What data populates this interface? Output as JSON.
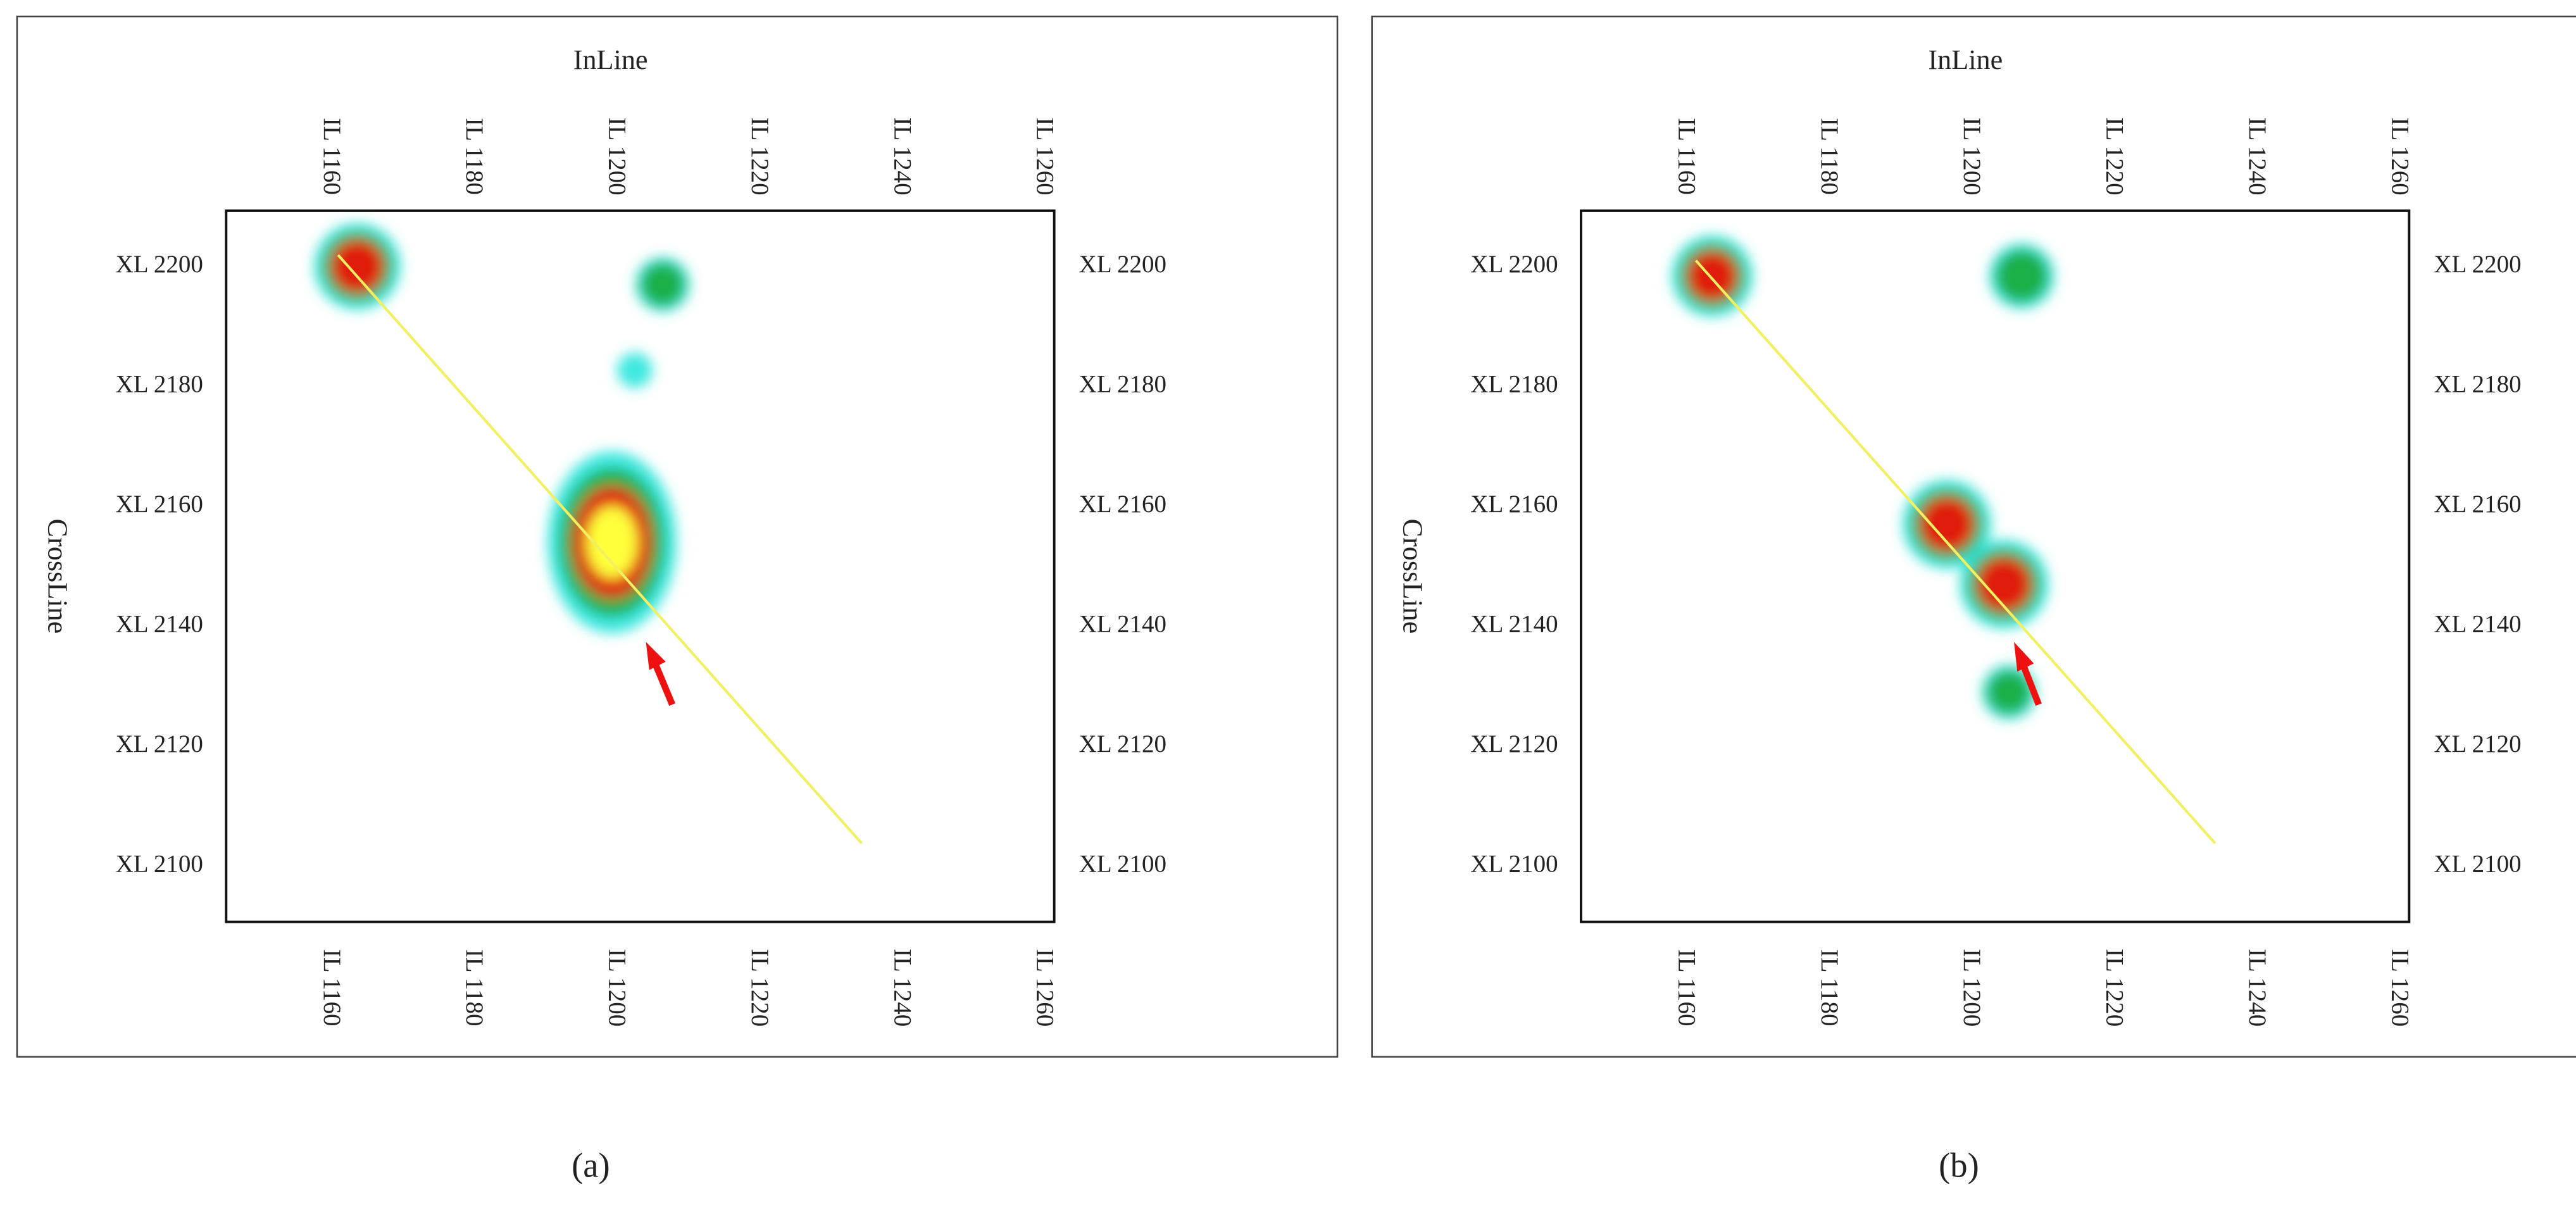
{
  "chart_data": [
    {
      "type": "heatmap",
      "xlabel": "InLine",
      "ylabel": "CrossLine",
      "caption": "(a)",
      "xlim": [
        1145.5,
        1261.6
      ],
      "ylim": [
        2090.7,
        2209.3
      ],
      "xticks": [
        {
          "value": 1160,
          "label": "IL 1160"
        },
        {
          "value": 1180,
          "label": "IL 1180"
        },
        {
          "value": 1200,
          "label": "IL 1200"
        },
        {
          "value": 1220,
          "label": "IL 1220"
        },
        {
          "value": 1240,
          "label": "IL 1240"
        },
        {
          "value": 1260,
          "label": "IL 1260"
        }
      ],
      "yticks": [
        {
          "value": 2100,
          "label": "XL 2100"
        },
        {
          "value": 2120,
          "label": "XL 2120"
        },
        {
          "value": 2140,
          "label": "XL 2140"
        },
        {
          "value": 2160,
          "label": "XL 2160"
        },
        {
          "value": 2180,
          "label": "XL 2180"
        },
        {
          "value": 2200,
          "label": "XL 2200"
        }
      ],
      "x": [
        1163.9,
        1206.7,
        1199.6,
        1202.8
      ],
      "y": [
        2200,
        2197,
        2154,
        2182.7
      ],
      "values": [
        0.6,
        0.3,
        1.0,
        0.12
      ],
      "colors": [
        "#3ee8e0",
        "#1fb04a",
        "#e01a10",
        "#ffff3a"
      ],
      "line": {
        "x": [
          1161.2,
          1234.6
        ],
        "y": [
          2201.9,
          2103.8
        ],
        "color": "#f2f060"
      }
    },
    {
      "type": "heatmap",
      "xlabel": "InLine",
      "ylabel": "CrossLine",
      "caption": "(b)",
      "xlim": [
        1145.5,
        1261.6
      ],
      "ylim": [
        2090.7,
        2209.3
      ],
      "xticks": [
        {
          "value": 1160,
          "label": "IL 1160"
        },
        {
          "value": 1180,
          "label": "IL 1180"
        },
        {
          "value": 1200,
          "label": "IL 1200"
        },
        {
          "value": 1220,
          "label": "IL 1220"
        },
        {
          "value": 1240,
          "label": "IL 1240"
        },
        {
          "value": 1260,
          "label": "IL 1260"
        }
      ],
      "yticks": [
        {
          "value": 2100,
          "label": "XL 2100"
        },
        {
          "value": 2120,
          "label": "XL 2120"
        },
        {
          "value": 2140,
          "label": "XL 2140"
        },
        {
          "value": 2160,
          "label": "XL 2160"
        },
        {
          "value": 2180,
          "label": "XL 2180"
        },
        {
          "value": 2200,
          "label": "XL 2200"
        }
      ],
      "x": [
        1163.9,
        1207.3,
        1196.8,
        1204.8,
        1205.5
      ],
      "y": [
        2198.4,
        2198.4,
        2157,
        2147,
        2129
      ],
      "values": [
        0.55,
        0.4,
        0.62,
        0.62,
        0.3
      ],
      "colors": [
        "#3ee8e0",
        "#1fb04a",
        "#e01a10",
        "#ffff3a"
      ],
      "line": {
        "x": [
          1161.6,
          1234.4
        ],
        "y": [
          2201,
          2103.8
        ],
        "color": "#f2f060"
      }
    }
  ]
}
